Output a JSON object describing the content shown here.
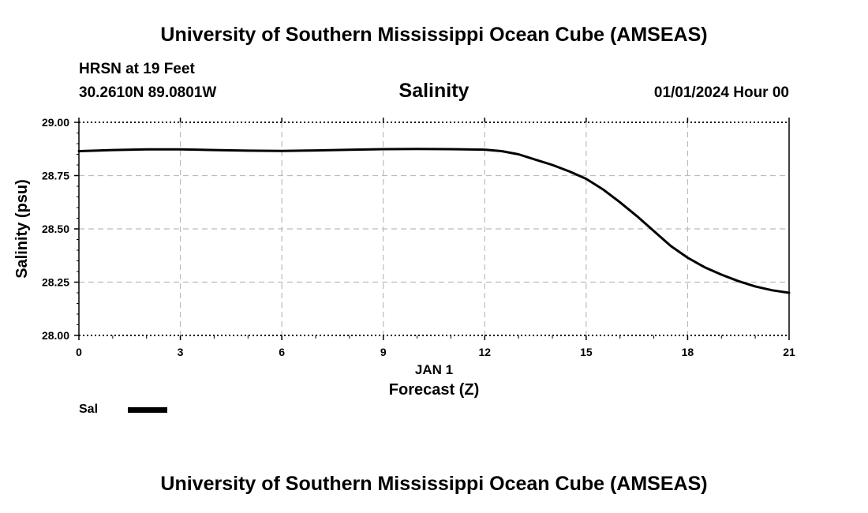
{
  "header": {
    "title": "University of Southern Mississippi Ocean Cube (AMSEAS)",
    "station": "HRSN at 19 Feet",
    "coords": "30.2610N  89.0801W",
    "chart_title": "Salinity",
    "datetime": "01/01/2024 Hour 00"
  },
  "footer": {
    "title": "University of Southern Mississippi Ocean Cube (AMSEAS)"
  },
  "legend": {
    "series_label": "Sal"
  },
  "chart_data": {
    "type": "line",
    "title": "Salinity",
    "xlabel": "Forecast (Z)",
    "xsublabel": "JAN 1",
    "ylabel": "Salinity (psu)",
    "xlim": [
      0,
      21
    ],
    "ylim": [
      28.0,
      29.0
    ],
    "xticks": [
      0,
      3,
      6,
      9,
      12,
      15,
      18,
      21
    ],
    "yticks": [
      "28.00",
      "28.25",
      "28.50",
      "28.75",
      "29.00"
    ],
    "grid": true,
    "legend_position": "bottom-left",
    "line_color": "#000000",
    "series": [
      {
        "name": "Sal",
        "x": [
          0,
          1,
          2,
          3,
          4,
          5,
          6,
          7,
          8,
          9,
          10,
          11,
          12,
          12.5,
          13,
          13.5,
          14,
          14.5,
          15,
          15.5,
          16,
          16.5,
          17,
          17.5,
          18,
          18.5,
          19,
          19.5,
          20,
          20.5,
          21
        ],
        "y": [
          28.865,
          28.87,
          28.873,
          28.873,
          28.87,
          28.867,
          28.866,
          28.868,
          28.871,
          28.874,
          28.875,
          28.874,
          28.872,
          28.865,
          28.85,
          28.825,
          28.8,
          28.77,
          28.735,
          28.685,
          28.625,
          28.56,
          28.49,
          28.42,
          28.365,
          28.32,
          28.285,
          28.255,
          28.23,
          28.212,
          28.2
        ]
      }
    ]
  }
}
